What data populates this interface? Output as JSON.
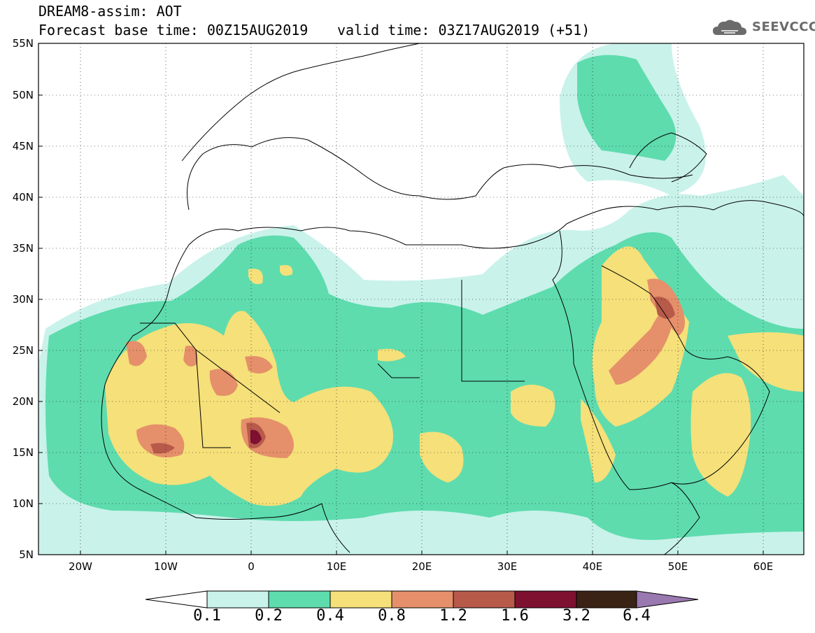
{
  "header": {
    "line1": "DREAM8-assim: AOT",
    "line2": "Forecast base time: 00Z15AUG2019",
    "line2b": "valid time: 03Z17AUG2019 (+51)"
  },
  "logo": {
    "text": "SEEVCCC",
    "icon": "cloud-logo-icon"
  },
  "axes": {
    "lat_labels": [
      "55N",
      "50N",
      "45N",
      "40N",
      "35N",
      "30N",
      "25N",
      "20N",
      "15N",
      "10N",
      "5N"
    ],
    "lon_labels": [
      "20W",
      "10W",
      "0",
      "10E",
      "20E",
      "30E",
      "40E",
      "50E",
      "60E"
    ]
  },
  "colorbar": {
    "labels": [
      "0.1",
      "0.2",
      "0.4",
      "0.8",
      "1.2",
      "1.6",
      "3.2",
      "6.4"
    ],
    "colors": [
      "#c9f2ea",
      "#5edcae",
      "#f5e07a",
      "#e5906a",
      "#b75a4a",
      "#7e1030",
      "#3a2215",
      "#9a78b0"
    ]
  }
}
